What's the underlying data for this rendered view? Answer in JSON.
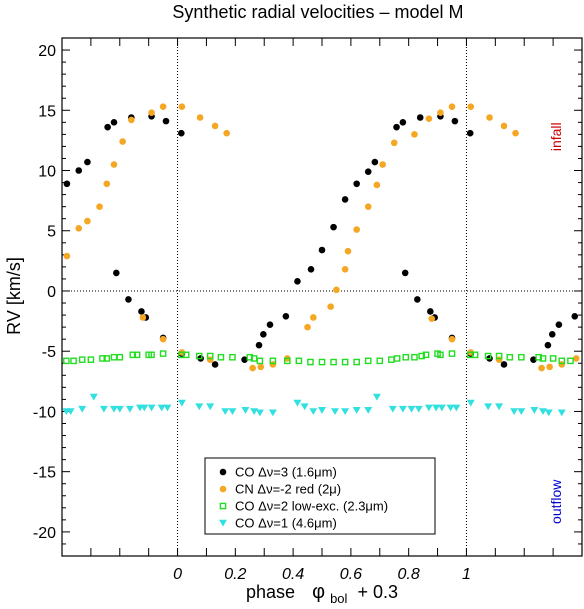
{
  "chart_data": {
    "type": "scatter",
    "title": "Synthetic radial velocities   –   model  M",
    "xlabel_parts": [
      "phase",
      "φ",
      "bol",
      "+ 0.3"
    ],
    "ylabel": "RV   [km/s]",
    "xlim": [
      -0.4,
      1.4
    ],
    "ylim": [
      -22,
      21
    ],
    "x_tick_labels": [
      {
        "x": 0,
        "label": "0"
      },
      {
        "x": 0.2,
        "label": "0.2"
      },
      {
        "x": 0.4,
        "label": "0.4"
      },
      {
        "x": 0.6,
        "label": "0.6"
      },
      {
        "x": 0.8,
        "label": "0.8"
      },
      {
        "x": 1,
        "label": "1"
      }
    ],
    "x_minor_ticks": [
      -0.3,
      -0.2,
      -0.1,
      0.1,
      0.3,
      0.5,
      0.7,
      0.9,
      1.1,
      1.2,
      1.3
    ],
    "y_ticks": [
      -20,
      -15,
      -10,
      -5,
      0,
      5,
      10,
      15,
      20
    ],
    "reference_lines": {
      "vertical": [
        0,
        1
      ],
      "horizontal": [
        0
      ]
    },
    "annotations": [
      {
        "text": "infall",
        "color": "#cc0000",
        "x": 1.31,
        "y": 12.8
      },
      {
        "text": "outflow",
        "color": "#0000cc",
        "x": 1.31,
        "y": -17.5
      }
    ],
    "legend": {
      "position": "bottom-center"
    },
    "series": [
      {
        "name": "CO Δν=3 (1.6μm)",
        "marker": "filled-circle",
        "color": "#000000",
        "points": [
          [
            -0.383,
            8.9
          ],
          [
            -0.342,
            10.0
          ],
          [
            -0.312,
            10.7
          ],
          [
            -0.242,
            13.6
          ],
          [
            -0.22,
            14.0
          ],
          [
            -0.212,
            1.5
          ],
          [
            -0.17,
            -0.7
          ],
          [
            -0.16,
            14.4
          ],
          [
            -0.125,
            -1.7
          ],
          [
            -0.11,
            -2.2
          ],
          [
            -0.09,
            14.5
          ],
          [
            -0.05,
            -3.9
          ],
          [
            -0.04,
            14.1
          ],
          [
            0.013,
            13.1
          ],
          [
            0.015,
            -5.2
          ],
          [
            0.08,
            -5.6
          ],
          [
            0.13,
            -6.1
          ],
          [
            0.232,
            -5.7
          ],
          [
            0.282,
            -4.5
          ],
          [
            0.297,
            -3.6
          ],
          [
            0.32,
            -2.8
          ],
          [
            0.375,
            -2.1
          ],
          [
            0.415,
            0.8
          ],
          [
            0.462,
            1.8
          ],
          [
            0.5,
            3.4
          ],
          [
            0.54,
            5.3
          ],
          [
            0.58,
            7.6
          ],
          [
            0.62,
            8.9
          ],
          [
            0.66,
            9.9
          ],
          [
            0.683,
            10.7
          ],
          [
            0.758,
            13.6
          ],
          [
            0.78,
            14.0
          ],
          [
            0.788,
            1.5
          ],
          [
            0.83,
            -0.7
          ],
          [
            0.84,
            14.4
          ],
          [
            0.875,
            -1.7
          ],
          [
            0.89,
            -2.2
          ],
          [
            0.91,
            14.5
          ],
          [
            0.95,
            -3.9
          ],
          [
            0.96,
            14.1
          ],
          [
            1.013,
            13.1
          ],
          [
            1.015,
            -5.2
          ],
          [
            1.08,
            -5.6
          ],
          [
            1.13,
            -6.1
          ],
          [
            1.232,
            -5.7
          ],
          [
            1.282,
            -4.5
          ],
          [
            1.297,
            -3.6
          ],
          [
            1.32,
            -2.8
          ],
          [
            1.375,
            -2.1
          ]
        ]
      },
      {
        "name": "CN Δν=-2 red (2μ)",
        "marker": "filled-circle",
        "color": "#f5a623",
        "points": [
          [
            -0.383,
            2.9
          ],
          [
            -0.342,
            5.2
          ],
          [
            -0.312,
            5.8
          ],
          [
            -0.27,
            7.0
          ],
          [
            -0.245,
            8.9
          ],
          [
            -0.22,
            10.5
          ],
          [
            -0.19,
            12.4
          ],
          [
            -0.16,
            14.2
          ],
          [
            -0.12,
            -2.2
          ],
          [
            -0.09,
            14.8
          ],
          [
            -0.05,
            15.3
          ],
          [
            -0.05,
            -4.0
          ],
          [
            0.015,
            15.3
          ],
          [
            0.015,
            -5.1
          ],
          [
            0.078,
            14.4
          ],
          [
            0.113,
            -5.7
          ],
          [
            0.13,
            13.7
          ],
          [
            0.17,
            13.1
          ],
          [
            0.26,
            -6.4
          ],
          [
            0.288,
            -6.3
          ],
          [
            0.33,
            -6.1
          ],
          [
            0.38,
            -5.6
          ],
          [
            0.45,
            -3.0
          ],
          [
            0.47,
            -2.2
          ],
          [
            0.53,
            -1.3
          ],
          [
            0.55,
            0.1
          ],
          [
            0.58,
            1.8
          ],
          [
            0.59,
            3.3
          ],
          [
            0.62,
            5.1
          ],
          [
            0.66,
            7.0
          ],
          [
            0.69,
            8.8
          ],
          [
            0.71,
            10.5
          ],
          [
            0.75,
            12.3
          ],
          [
            0.82,
            13.0
          ],
          [
            0.87,
            14.3
          ],
          [
            0.88,
            -2.3
          ],
          [
            0.91,
            14.8
          ],
          [
            0.95,
            -4.0
          ],
          [
            0.95,
            15.3
          ],
          [
            1.015,
            15.3
          ],
          [
            1.015,
            -5.1
          ],
          [
            1.08,
            14.4
          ],
          [
            1.113,
            -5.7
          ],
          [
            1.13,
            13.7
          ],
          [
            1.17,
            13.1
          ],
          [
            1.26,
            -6.4
          ],
          [
            1.288,
            -6.3
          ],
          [
            1.33,
            -6.1
          ],
          [
            1.38,
            -5.6
          ]
        ]
      },
      {
        "name": "CO Δν=2 low-exc. (2.3μm)",
        "marker": "open-square",
        "color": "#22dd22",
        "points": [
          [
            -0.385,
            -5.8
          ],
          [
            -0.36,
            -5.8
          ],
          [
            -0.33,
            -5.7
          ],
          [
            -0.3,
            -5.7
          ],
          [
            -0.26,
            -5.6
          ],
          [
            -0.245,
            -5.6
          ],
          [
            -0.22,
            -5.5
          ],
          [
            -0.2,
            -5.5
          ],
          [
            -0.155,
            -5.3
          ],
          [
            -0.14,
            -5.3
          ],
          [
            -0.1,
            -5.3
          ],
          [
            -0.09,
            -5.3
          ],
          [
            -0.05,
            -5.2
          ],
          [
            0.013,
            -5.3
          ],
          [
            0.03,
            -5.3
          ],
          [
            0.075,
            -5.4
          ],
          [
            0.113,
            -5.4
          ],
          [
            0.15,
            -5.5
          ],
          [
            0.19,
            -5.5
          ],
          [
            0.25,
            -5.5
          ],
          [
            0.265,
            -5.6
          ],
          [
            0.285,
            -5.8
          ],
          [
            0.33,
            -5.8
          ],
          [
            0.38,
            -5.8
          ],
          [
            0.42,
            -5.8
          ],
          [
            0.46,
            -5.9
          ],
          [
            0.5,
            -5.9
          ],
          [
            0.54,
            -5.9
          ],
          [
            0.58,
            -5.9
          ],
          [
            0.62,
            -5.9
          ],
          [
            0.66,
            -5.8
          ],
          [
            0.7,
            -5.8
          ],
          [
            0.74,
            -5.7
          ],
          [
            0.76,
            -5.6
          ],
          [
            0.79,
            -5.5
          ],
          [
            0.82,
            -5.5
          ],
          [
            0.845,
            -5.4
          ],
          [
            0.86,
            -5.3
          ],
          [
            0.9,
            -5.2
          ],
          [
            0.91,
            -5.3
          ],
          [
            0.95,
            -5.2
          ],
          [
            1.013,
            -5.3
          ],
          [
            1.03,
            -5.3
          ],
          [
            1.075,
            -5.4
          ],
          [
            1.113,
            -5.4
          ],
          [
            1.15,
            -5.5
          ],
          [
            1.19,
            -5.5
          ],
          [
            1.25,
            -5.5
          ],
          [
            1.265,
            -5.6
          ],
          [
            1.3,
            -5.6
          ],
          [
            1.33,
            -5.8
          ],
          [
            1.36,
            -5.8
          ]
        ]
      },
      {
        "name": "CO Δν=1 (4.6μm)",
        "marker": "filled-triangle-down",
        "color": "#33e0e0",
        "points": [
          [
            -0.385,
            -10.0
          ],
          [
            -0.37,
            -10.0
          ],
          [
            -0.33,
            -9.8
          ],
          [
            -0.29,
            -8.8
          ],
          [
            -0.255,
            -9.8
          ],
          [
            -0.22,
            -9.8
          ],
          [
            -0.2,
            -9.8
          ],
          [
            -0.165,
            -9.8
          ],
          [
            -0.13,
            -9.7
          ],
          [
            -0.115,
            -9.7
          ],
          [
            -0.09,
            -9.7
          ],
          [
            -0.055,
            -9.7
          ],
          [
            -0.035,
            -9.7
          ],
          [
            0.015,
            -9.3
          ],
          [
            0.075,
            -9.6
          ],
          [
            0.113,
            -9.6
          ],
          [
            0.165,
            -10.0
          ],
          [
            0.19,
            -10.0
          ],
          [
            0.235,
            -9.9
          ],
          [
            0.265,
            -10.0
          ],
          [
            0.285,
            -10.1
          ],
          [
            0.33,
            -10.1
          ],
          [
            0.415,
            -9.3
          ],
          [
            0.44,
            -9.6
          ],
          [
            0.47,
            -10.0
          ],
          [
            0.5,
            -9.9
          ],
          [
            0.545,
            -10.0
          ],
          [
            0.58,
            -10.0
          ],
          [
            0.62,
            -9.9
          ],
          [
            0.66,
            -9.9
          ],
          [
            0.69,
            -8.8
          ],
          [
            0.745,
            -9.8
          ],
          [
            0.78,
            -9.8
          ],
          [
            0.81,
            -9.8
          ],
          [
            0.835,
            -9.8
          ],
          [
            0.87,
            -9.7
          ],
          [
            0.895,
            -9.7
          ],
          [
            0.915,
            -9.7
          ],
          [
            0.945,
            -9.7
          ],
          [
            0.965,
            -9.7
          ],
          [
            1.015,
            -9.3
          ],
          [
            1.075,
            -9.6
          ],
          [
            1.113,
            -9.6
          ],
          [
            1.165,
            -10.0
          ],
          [
            1.19,
            -10.0
          ],
          [
            1.235,
            -9.9
          ],
          [
            1.265,
            -10.0
          ],
          [
            1.285,
            -10.1
          ],
          [
            1.33,
            -10.1
          ]
        ]
      }
    ]
  }
}
